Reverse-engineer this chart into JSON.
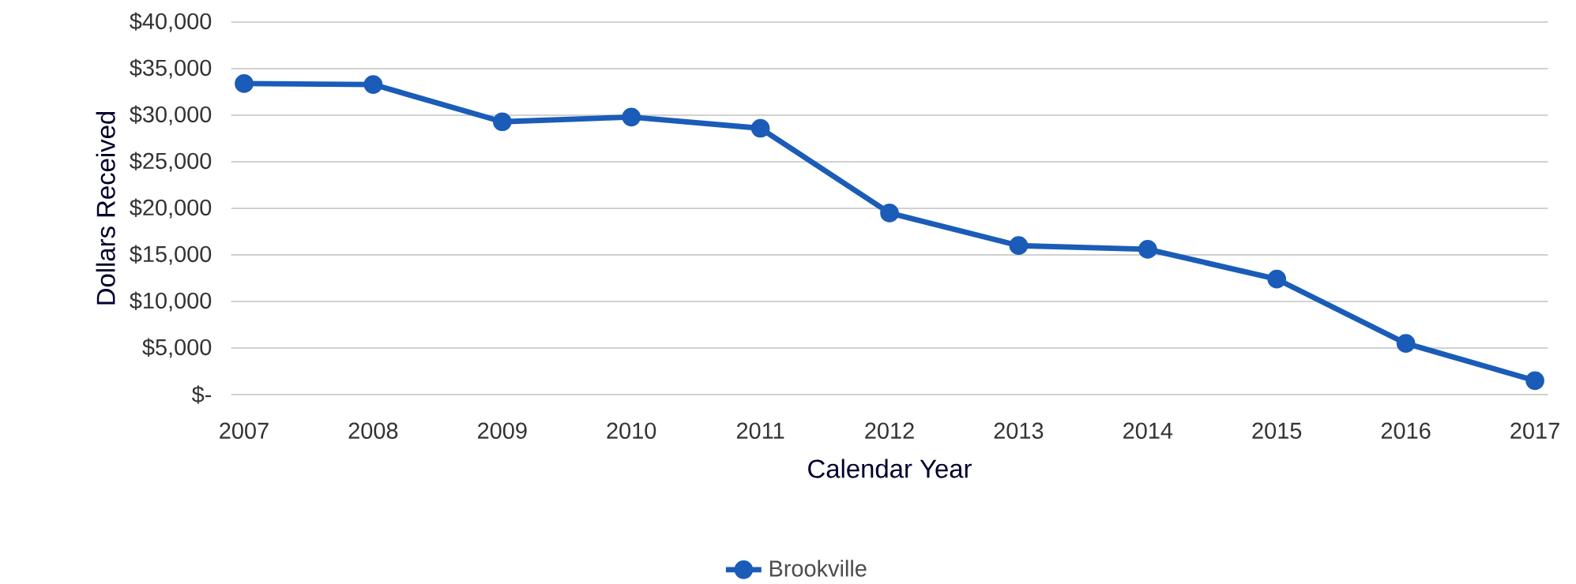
{
  "chart_data": {
    "type": "line",
    "xlabel": "Calendar Year",
    "ylabel": "Dollars Received",
    "categories": [
      "2007",
      "2008",
      "2009",
      "2010",
      "2011",
      "2012",
      "2013",
      "2014",
      "2015",
      "2016",
      "2017"
    ],
    "series": [
      {
        "name": "Brookville",
        "color": "#1a5cb8",
        "values": [
          33400,
          33300,
          29300,
          29800,
          28600,
          19500,
          16000,
          15600,
          12400,
          5500,
          1500
        ]
      }
    ],
    "ylim": [
      0,
      40000
    ],
    "yticks": [
      {
        "value": 0,
        "label": "$-"
      },
      {
        "value": 5000,
        "label": "$5,000"
      },
      {
        "value": 10000,
        "label": "$10,000"
      },
      {
        "value": 15000,
        "label": "$15,000"
      },
      {
        "value": 20000,
        "label": "$20,000"
      },
      {
        "value": 25000,
        "label": "$25,000"
      },
      {
        "value": 30000,
        "label": "$30,000"
      },
      {
        "value": 35000,
        "label": "$35,000"
      },
      {
        "value": 40000,
        "label": "$40,000"
      }
    ],
    "grid": "y",
    "legend": "bottom",
    "marker": "circle",
    "line_style": "solid"
  }
}
